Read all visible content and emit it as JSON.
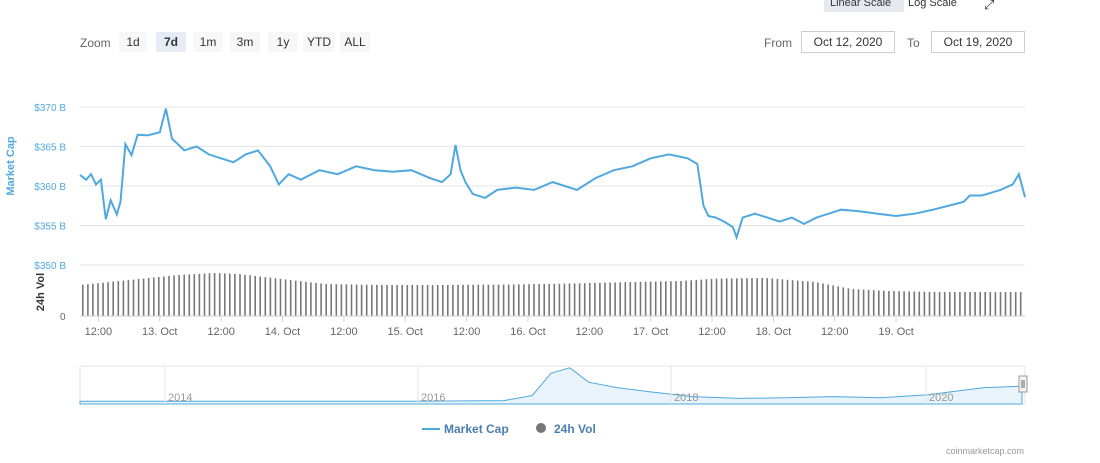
{
  "toolbar": {
    "linear_label": "Linear Scale",
    "log_label": "Log Scale",
    "fullscreen_glyph": "⤢",
    "menu_icon": "menu-icon"
  },
  "zoom": {
    "label": "Zoom",
    "buttons": [
      "1d",
      "7d",
      "1m",
      "3m",
      "1y",
      "YTD",
      "ALL"
    ],
    "active": "7d"
  },
  "range": {
    "from_label": "From",
    "from_value": "Oct 12, 2020",
    "to_label": "To",
    "to_value": "Oct 19, 2020"
  },
  "chart_data": {
    "type": "line",
    "ylabel": "Market Cap",
    "y_ticks": [
      "$350 B",
      "$355 B",
      "$360 B",
      "$365 B",
      "$370 B"
    ],
    "ylim": [
      350,
      370
    ],
    "x_ticks": [
      "12:00",
      "13. Oct",
      "12:00",
      "14. Oct",
      "12:00",
      "15. Oct",
      "12:00",
      "16. Oct",
      "12:00",
      "17. Oct",
      "12:00",
      "18. Oct",
      "12:00",
      "19. Oct"
    ],
    "xlim": [
      0,
      7.7
    ],
    "market_cap": {
      "name": "Market Cap",
      "color": "#4fa8de",
      "points": [
        [
          0.0,
          361.4
        ],
        [
          0.05,
          360.8
        ],
        [
          0.09,
          361.5
        ],
        [
          0.13,
          360.2
        ],
        [
          0.17,
          360.8
        ],
        [
          0.21,
          355.8
        ],
        [
          0.25,
          358.2
        ],
        [
          0.3,
          356.4
        ],
        [
          0.33,
          358.0
        ],
        [
          0.37,
          365.3
        ],
        [
          0.42,
          363.9
        ],
        [
          0.47,
          366.5
        ],
        [
          0.55,
          366.4
        ],
        [
          0.65,
          366.8
        ],
        [
          0.7,
          369.8
        ],
        [
          0.75,
          366.0
        ],
        [
          0.85,
          364.5
        ],
        [
          0.95,
          365.0
        ],
        [
          1.05,
          364.0
        ],
        [
          1.15,
          363.5
        ],
        [
          1.25,
          363.0
        ],
        [
          1.35,
          364.0
        ],
        [
          1.45,
          364.5
        ],
        [
          1.55,
          362.5
        ],
        [
          1.62,
          360.2
        ],
        [
          1.7,
          361.5
        ],
        [
          1.8,
          360.8
        ],
        [
          1.95,
          362.0
        ],
        [
          2.1,
          361.5
        ],
        [
          2.25,
          362.5
        ],
        [
          2.4,
          362.0
        ],
        [
          2.55,
          361.8
        ],
        [
          2.7,
          362.0
        ],
        [
          2.85,
          361.0
        ],
        [
          2.95,
          360.5
        ],
        [
          3.02,
          361.5
        ],
        [
          3.06,
          365.2
        ],
        [
          3.1,
          362.0
        ],
        [
          3.14,
          360.5
        ],
        [
          3.2,
          359.0
        ],
        [
          3.3,
          358.5
        ],
        [
          3.4,
          359.5
        ],
        [
          3.55,
          359.8
        ],
        [
          3.7,
          359.5
        ],
        [
          3.85,
          360.5
        ],
        [
          3.95,
          360.0
        ],
        [
          4.05,
          359.5
        ],
        [
          4.2,
          361.0
        ],
        [
          4.35,
          362.0
        ],
        [
          4.5,
          362.5
        ],
        [
          4.65,
          363.5
        ],
        [
          4.8,
          364.0
        ],
        [
          4.95,
          363.5
        ],
        [
          5.03,
          362.8
        ],
        [
          5.08,
          357.5
        ],
        [
          5.12,
          356.2
        ],
        [
          5.18,
          356.0
        ],
        [
          5.25,
          355.5
        ],
        [
          5.32,
          354.8
        ],
        [
          5.35,
          353.5
        ],
        [
          5.4,
          356.0
        ],
        [
          5.5,
          356.5
        ],
        [
          5.6,
          356.0
        ],
        [
          5.7,
          355.5
        ],
        [
          5.8,
          356.0
        ],
        [
          5.9,
          355.2
        ],
        [
          6.0,
          356.0
        ],
        [
          6.1,
          356.5
        ],
        [
          6.2,
          357.0
        ],
        [
          6.35,
          356.8
        ],
        [
          6.5,
          356.5
        ],
        [
          6.65,
          356.2
        ],
        [
          6.8,
          356.5
        ],
        [
          6.95,
          357.0
        ],
        [
          7.1,
          357.6
        ],
        [
          7.2,
          358.0
        ],
        [
          7.25,
          358.8
        ],
        [
          7.35,
          358.8
        ],
        [
          7.5,
          359.5
        ],
        [
          7.6,
          360.2
        ],
        [
          7.65,
          361.5
        ],
        [
          7.7,
          358.6
        ]
      ]
    },
    "volume": {
      "name": "24h Vol",
      "color": "#777777",
      "profile": [
        [
          0.0,
          0.62
        ],
        [
          0.4,
          0.72
        ],
        [
          0.8,
          0.82
        ],
        [
          1.1,
          0.86
        ],
        [
          1.3,
          0.84
        ],
        [
          1.5,
          0.78
        ],
        [
          2.0,
          0.64
        ],
        [
          2.5,
          0.62
        ],
        [
          3.0,
          0.62
        ],
        [
          3.5,
          0.63
        ],
        [
          4.0,
          0.65
        ],
        [
          4.5,
          0.68
        ],
        [
          4.9,
          0.7
        ],
        [
          5.2,
          0.75
        ],
        [
          5.6,
          0.76
        ],
        [
          6.0,
          0.68
        ],
        [
          6.3,
          0.54
        ],
        [
          6.6,
          0.5
        ],
        [
          7.0,
          0.48
        ],
        [
          7.7,
          0.48
        ]
      ],
      "bar_count": 186,
      "zero_label": "0",
      "axis_label": "24h Vol"
    },
    "navigator": {
      "labels": [
        "2014",
        "2016",
        "2018",
        "2020"
      ],
      "profile": [
        [
          0,
          0.02
        ],
        [
          0.05,
          0.02
        ],
        [
          0.35,
          0.02
        ],
        [
          0.45,
          0.04
        ],
        [
          0.48,
          0.18
        ],
        [
          0.5,
          0.8
        ],
        [
          0.52,
          0.95
        ],
        [
          0.54,
          0.55
        ],
        [
          0.57,
          0.4
        ],
        [
          0.6,
          0.3
        ],
        [
          0.65,
          0.15
        ],
        [
          0.7,
          0.1
        ],
        [
          0.75,
          0.12
        ],
        [
          0.8,
          0.15
        ],
        [
          0.85,
          0.12
        ],
        [
          0.9,
          0.2
        ],
        [
          0.96,
          0.4
        ],
        [
          1.0,
          0.44
        ]
      ]
    },
    "legend": [
      "Market Cap",
      "24h Vol"
    ]
  },
  "credits": "coinmarketcap.com"
}
